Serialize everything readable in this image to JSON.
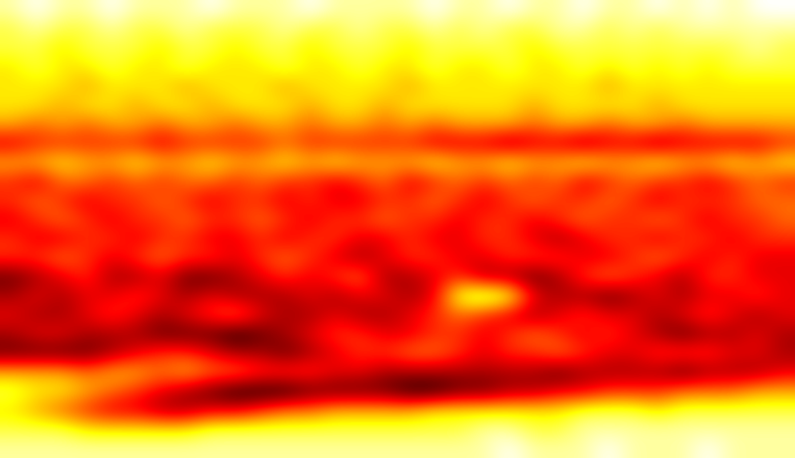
{
  "chart_data": {
    "type": "heatmap",
    "tick_labels": false,
    "cells": [
      [
        1,
        0,
        1,
        1,
        0,
        1,
        1,
        1,
        0,
        1,
        1,
        1,
        0,
        1,
        1,
        1,
        1,
        0,
        1,
        1,
        0,
        1,
        1,
        0,
        1,
        1,
        0,
        1,
        0,
        1,
        0,
        0
      ],
      [
        2,
        1,
        2,
        2,
        1,
        2,
        2,
        1,
        2,
        2,
        2,
        1,
        2,
        2,
        1,
        2,
        2,
        1,
        2,
        1,
        2,
        2,
        1,
        1,
        2,
        1,
        2,
        1,
        1,
        1,
        1,
        1
      ],
      [
        2,
        2,
        3,
        2,
        2,
        2,
        3,
        2,
        2,
        3,
        2,
        2,
        3,
        2,
        2,
        2,
        3,
        2,
        2,
        2,
        2,
        3,
        2,
        2,
        2,
        2,
        2,
        2,
        2,
        2,
        1,
        2
      ],
      [
        3,
        2,
        3,
        3,
        2,
        3,
        3,
        2,
        3,
        3,
        3,
        2,
        3,
        3,
        2,
        3,
        3,
        2,
        3,
        3,
        2,
        3,
        3,
        2,
        3,
        2,
        3,
        2,
        3,
        2,
        2,
        2
      ],
      [
        3,
        3,
        3,
        4,
        3,
        3,
        3,
        4,
        3,
        3,
        3,
        4,
        3,
        3,
        3,
        3,
        4,
        3,
        3,
        3,
        3,
        3,
        3,
        3,
        4,
        3,
        3,
        3,
        3,
        3,
        3,
        3
      ],
      [
        3,
        3,
        4,
        3,
        3,
        4,
        3,
        3,
        4,
        3,
        3,
        3,
        4,
        3,
        3,
        4,
        3,
        3,
        3,
        3,
        3,
        4,
        3,
        3,
        3,
        3,
        4,
        3,
        3,
        3,
        3,
        3
      ],
      [
        4,
        5,
        4,
        5,
        4,
        4,
        5,
        4,
        4,
        5,
        4,
        4,
        5,
        4,
        4,
        5,
        4,
        5,
        4,
        4,
        4,
        5,
        4,
        4,
        5,
        4,
        4,
        5,
        4,
        4,
        4,
        4
      ],
      [
        7,
        6,
        6,
        6,
        6,
        6,
        7,
        6,
        6,
        6,
        6,
        5,
        6,
        6,
        6,
        6,
        6,
        7,
        7,
        7,
        8,
        7,
        7,
        8,
        7,
        7,
        8,
        7,
        7,
        7,
        7,
        6
      ],
      [
        4,
        4,
        3,
        4,
        4,
        3,
        4,
        4,
        3,
        4,
        4,
        3,
        4,
        3,
        4,
        4,
        4,
        3,
        4,
        4,
        3,
        4,
        4,
        3,
        4,
        4,
        3,
        4,
        4,
        3,
        4,
        3
      ],
      [
        6,
        7,
        5,
        5,
        6,
        5,
        6,
        5,
        5,
        6,
        5,
        6,
        6,
        7,
        6,
        5,
        7,
        6,
        5,
        6,
        5,
        6,
        5,
        7,
        6,
        5,
        6,
        6,
        7,
        6,
        5,
        6
      ],
      [
        6,
        5,
        6,
        7,
        6,
        6,
        5,
        6,
        7,
        6,
        6,
        7,
        6,
        7,
        7,
        6,
        6,
        5,
        6,
        7,
        6,
        5,
        6,
        6,
        5,
        6,
        7,
        6,
        6,
        6,
        5,
        5
      ],
      [
        7,
        6,
        5,
        6,
        7,
        6,
        6,
        5,
        6,
        6,
        5,
        6,
        7,
        6,
        6,
        5,
        6,
        6,
        7,
        6,
        6,
        7,
        6,
        5,
        6,
        6,
        5,
        6,
        7,
        6,
        6,
        5
      ],
      [
        6,
        7,
        7,
        6,
        6,
        7,
        6,
        6,
        7,
        7,
        6,
        7,
        6,
        6,
        7,
        7,
        6,
        7,
        7,
        6,
        6,
        7,
        8,
        7,
        6,
        6,
        7,
        6,
        6,
        7,
        6,
        6
      ],
      [
        6,
        6,
        5,
        6,
        7,
        6,
        5,
        6,
        6,
        7,
        6,
        5,
        6,
        7,
        8,
        7,
        6,
        6,
        7,
        7,
        6,
        6,
        6,
        7,
        7,
        6,
        5,
        6,
        7,
        6,
        7,
        7
      ],
      [
        9,
        8,
        7,
        6,
        8,
        8,
        7,
        9,
        9,
        8,
        7,
        6,
        7,
        6,
        5,
        8,
        8,
        7,
        6,
        8,
        8,
        9,
        8,
        6,
        5,
        6,
        7,
        8,
        6,
        6,
        7,
        7
      ],
      [
        8,
        7,
        8,
        7,
        7,
        6,
        7,
        8,
        7,
        8,
        8,
        8,
        7,
        8,
        7,
        7,
        8,
        7,
        2,
        1,
        2,
        7,
        8,
        8,
        9,
        8,
        7,
        8,
        7,
        7,
        6,
        7
      ],
      [
        7,
        8,
        8,
        7,
        6,
        7,
        8,
        7,
        6,
        5,
        7,
        8,
        8,
        7,
        8,
        8,
        7,
        6,
        5,
        6,
        7,
        8,
        7,
        6,
        7,
        7,
        8,
        7,
        6,
        7,
        8,
        7
      ],
      [
        8,
        7,
        7,
        8,
        8,
        8,
        9,
        9,
        9,
        10,
        9,
        8,
        7,
        6,
        6,
        7,
        7,
        6,
        6,
        7,
        6,
        5,
        6,
        7,
        6,
        7,
        8,
        9,
        8,
        8,
        7,
        8
      ],
      [
        9,
        9,
        9,
        9,
        8,
        7,
        6,
        6,
        7,
        8,
        8,
        9,
        8,
        7,
        6,
        6,
        5,
        5,
        6,
        7,
        6,
        6,
        5,
        6,
        7,
        7,
        6,
        6,
        6,
        7,
        7,
        8
      ],
      [
        4,
        4,
        4,
        5,
        4,
        4,
        5,
        4,
        5,
        5,
        6,
        6,
        6,
        7,
        7,
        8,
        8,
        8,
        8,
        8,
        8,
        8,
        9,
        8,
        8,
        8,
        8,
        9,
        8,
        8,
        8,
        7
      ],
      [
        2,
        3,
        3,
        4,
        5,
        6,
        7,
        8,
        9,
        10,
        10,
        10,
        9,
        9,
        9,
        9,
        10,
        10,
        9,
        9,
        8,
        8,
        7,
        7,
        6,
        6,
        6,
        5,
        5,
        5,
        4,
        4
      ],
      [
        3,
        4,
        5,
        6,
        7,
        7,
        8,
        8,
        7,
        7,
        6,
        5,
        5,
        4,
        4,
        4,
        4,
        3,
        3,
        3,
        3,
        3,
        3,
        2,
        2,
        2,
        3,
        2,
        2,
        2,
        2,
        2
      ],
      [
        2,
        2,
        2,
        3,
        3,
        3,
        3,
        3,
        2,
        2,
        2,
        2,
        2,
        2,
        2,
        2,
        2,
        2,
        2,
        1,
        1,
        2,
        2,
        1,
        1,
        1,
        1,
        1,
        1,
        1,
        1,
        1
      ],
      [
        1,
        1,
        1,
        1,
        1,
        1,
        1,
        1,
        1,
        1,
        1,
        1,
        1,
        1,
        1,
        1,
        1,
        1,
        1,
        1,
        0,
        1,
        1,
        1,
        0,
        1,
        1,
        1,
        0,
        1,
        1,
        1
      ]
    ]
  }
}
